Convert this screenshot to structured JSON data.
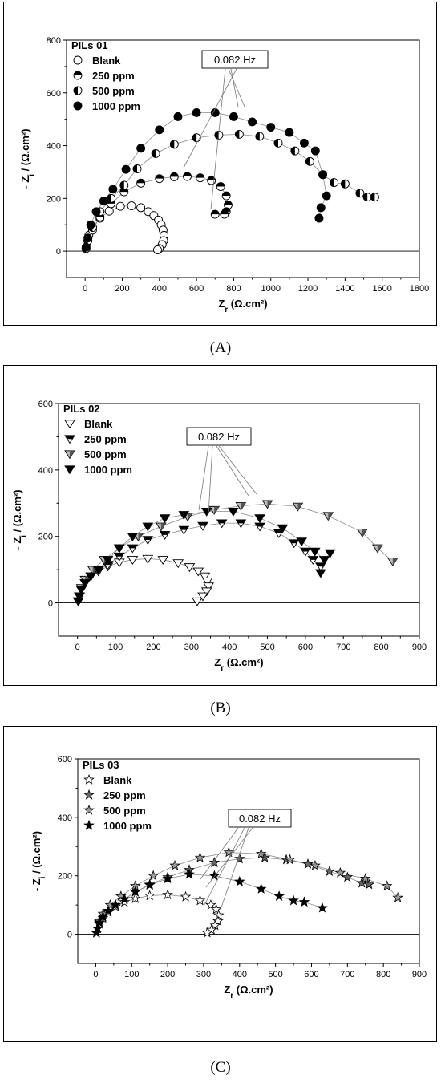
{
  "panels": [
    {
      "id": "A",
      "caption": "(A)",
      "chart_data": {
        "type": "scatter",
        "legend_title": "PILs 01",
        "xlabel": "Z_r (Ω.cm²)",
        "ylabel": "- Z_i / (Ω.cm²)",
        "xlim": [
          -100,
          1800
        ],
        "ylim": [
          -100,
          800
        ],
        "xticks": [
          0,
          200,
          400,
          600,
          800,
          1000,
          1200,
          1400,
          1600,
          1800
        ],
        "yticks": [
          0,
          200,
          400,
          600,
          800
        ],
        "legend_position": "top-left",
        "annotation": "0.082 Hz",
        "series": [
          {
            "name": "Blank",
            "marker": "circle-open",
            "x": [
              5,
              10,
              20,
              40,
              80,
              130,
              190,
              250,
              300,
              340,
              370,
              395,
              410,
              420,
              425,
              423,
              415,
              400,
              390
            ],
            "y": [
              10,
              30,
              60,
              90,
              125,
              152,
              170,
              172,
              165,
              150,
              135,
              118,
              100,
              80,
              60,
              40,
              25,
              10,
              5
            ]
          },
          {
            "name": "250 ppm",
            "marker": "circle-half-top",
            "x": [
              5,
              15,
              40,
              80,
              140,
              210,
              300,
              400,
              480,
              550,
              620,
              680,
              730,
              760,
              770,
              760,
              750,
              700
            ],
            "y": [
              10,
              40,
              80,
              130,
              180,
              225,
              258,
              275,
              282,
              283,
              278,
              268,
              245,
              210,
              175,
              150,
              140,
              140
            ]
          },
          {
            "name": "500 ppm",
            "marker": "circle-half-left",
            "x": [
              5,
              15,
              40,
              80,
              140,
              210,
              280,
              380,
              480,
              600,
              720,
              830,
              940,
              1040,
              1130,
              1210,
              1280,
              1340,
              1400,
              1480,
              1520,
              1560
            ],
            "y": [
              10,
              40,
              90,
              150,
              200,
              250,
              312,
              370,
              405,
              430,
              440,
              443,
              435,
              410,
              380,
              340,
              290,
              260,
              255,
              220,
              205,
              205
            ]
          },
          {
            "name": "1000 ppm",
            "marker": "circle-filled",
            "x": [
              5,
              15,
              30,
              60,
              100,
              150,
              220,
              300,
              400,
              500,
              600,
              700,
              800,
              900,
              1000,
              1100,
              1180,
              1240,
              1280,
              1300,
              1270,
              1260
            ],
            "y": [
              15,
              50,
              100,
              150,
              190,
              235,
              310,
              390,
              460,
              510,
              525,
              525,
              510,
              490,
              470,
              450,
              410,
              380,
              290,
              210,
              165,
              125
            ]
          }
        ]
      }
    },
    {
      "id": "B",
      "caption": "(B)",
      "chart_data": {
        "type": "scatter",
        "legend_title": "PILs 02",
        "xlabel": "Z_r (Ω.cm²)",
        "ylabel": "- Z_i / (Ω.cm²)",
        "xlim": [
          -50,
          900
        ],
        "ylim": [
          -100,
          600
        ],
        "xticks": [
          0,
          100,
          200,
          300,
          400,
          500,
          600,
          700,
          800,
          900
        ],
        "yticks": [
          0,
          200,
          400,
          600
        ],
        "legend_position": "top-left",
        "annotation": "0.082 Hz",
        "series": [
          {
            "name": "Blank",
            "marker": "triangle-down-open",
            "x": [
              2,
              5,
              10,
              20,
              35,
              55,
              80,
              110,
              145,
              185,
              225,
              265,
              295,
              318,
              335,
              342,
              345,
              340,
              330,
              315
            ],
            "y": [
              5,
              20,
              40,
              60,
              80,
              95,
              110,
              122,
              130,
              133,
              130,
              120,
              108,
              95,
              80,
              65,
              50,
              35,
              20,
              5
            ]
          },
          {
            "name": "250 ppm",
            "marker": "triangle-down-half",
            "x": [
              2,
              5,
              10,
              20,
              35,
              55,
              80,
              110,
              145,
              185,
              230,
              280,
              330,
              380,
              430,
              480,
              530,
              570,
              600,
              620,
              640
            ],
            "y": [
              5,
              20,
              40,
              60,
              80,
              100,
              115,
              140,
              165,
              190,
              205,
              220,
              232,
              240,
              240,
              230,
              210,
              180,
              155,
              130,
              110
            ]
          },
          {
            "name": "500 ppm",
            "marker": "triangle-down-striped",
            "x": [
              2,
              5,
              10,
              20,
              40,
              70,
              110,
              160,
              220,
              290,
              360,
              430,
              500,
              580,
              660,
              750,
              790,
              830
            ],
            "y": [
              5,
              20,
              45,
              70,
              100,
              130,
              165,
              200,
              230,
              260,
              280,
              292,
              298,
              290,
              262,
              212,
              165,
              125
            ]
          },
          {
            "name": "1000 ppm",
            "marker": "triangle-down-filled",
            "x": [
              2,
              5,
              10,
              20,
              35,
              55,
              80,
              110,
              145,
              185,
              230,
              280,
              340,
              410,
              480,
              540,
              590,
              625,
              650,
              665,
              640
            ],
            "y": [
              5,
              20,
              40,
              60,
              80,
              100,
              130,
              165,
              200,
              230,
              255,
              265,
              275,
              275,
              255,
              225,
              185,
              155,
              130,
              150,
              90
            ]
          }
        ]
      }
    },
    {
      "id": "C",
      "caption": "(C)",
      "chart_data": {
        "type": "scatter",
        "legend_title": "PILs 03",
        "xlabel": "Z_r (Ω.cm²)",
        "ylabel": "- Z_i / (Ω.cm²)",
        "xlim": [
          -50,
          900
        ],
        "ylim": [
          -100,
          600
        ],
        "xticks": [
          0,
          100,
          200,
          300,
          400,
          500,
          600,
          700,
          800,
          900
        ],
        "yticks": [
          0,
          200,
          400,
          600
        ],
        "legend_position": "top-left",
        "annotation": "0.082 Hz",
        "series": [
          {
            "name": "Blank",
            "marker": "star-open",
            "x": [
              2,
              5,
              10,
              20,
              35,
              55,
              80,
              110,
              150,
              200,
              250,
              290,
              320,
              335,
              342,
              340,
              332,
              322,
              310
            ],
            "y": [
              5,
              20,
              35,
              55,
              75,
              95,
              110,
              122,
              132,
              135,
              128,
              115,
              100,
              85,
              65,
              45,
              30,
              15,
              5
            ]
          },
          {
            "name": "250 ppm",
            "marker": "star-half",
            "x": [
              2,
              5,
              10,
              20,
              35,
              55,
              80,
              110,
              150,
              200,
              260,
              330,
              400,
              470,
              530,
              590,
              650,
              700,
              740,
              760
            ],
            "y": [
              5,
              20,
              40,
              60,
              80,
              100,
              120,
              145,
              170,
              195,
              220,
              245,
              258,
              262,
              255,
              240,
              215,
              195,
              175,
              170
            ]
          },
          {
            "name": "500 ppm",
            "marker": "star-striped",
            "x": [
              2,
              5,
              10,
              20,
              40,
              70,
              110,
              160,
              220,
              290,
              370,
              460,
              540,
              610,
              680,
              750,
              810,
              840
            ],
            "y": [
              5,
              20,
              45,
              70,
              100,
              130,
              165,
              200,
              235,
              262,
              280,
              275,
              255,
              235,
              210,
              190,
              165,
              125
            ]
          },
          {
            "name": "1000 ppm",
            "marker": "star-filled",
            "x": [
              2,
              5,
              10,
              20,
              35,
              55,
              80,
              110,
              150,
              200,
              260,
              330,
              400,
              460,
              510,
              550,
              580,
              630
            ],
            "y": [
              5,
              20,
              40,
              60,
              80,
              100,
              120,
              145,
              168,
              190,
              205,
              200,
              180,
              155,
              130,
              115,
              110,
              90
            ]
          }
        ]
      }
    }
  ]
}
